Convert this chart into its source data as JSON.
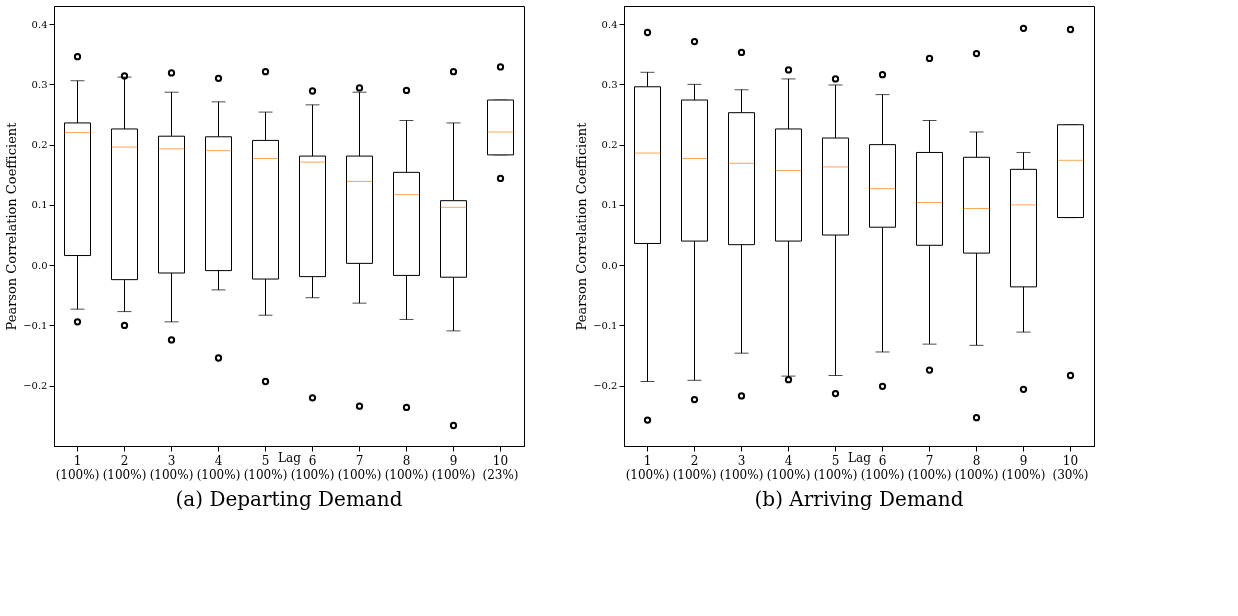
{
  "chart_data": [
    {
      "type": "box",
      "title": "(a) Departing Demand",
      "xlabel": "Lag",
      "ylabel": "Pearson Correlation Coefficient",
      "ylim": [
        -0.3,
        0.43
      ],
      "yticks": [
        {
          "value": -0.2,
          "label": "−0.2"
        },
        {
          "value": -0.1,
          "label": "−0.1"
        },
        {
          "value": 0,
          "label": "0.0"
        },
        0.1,
        0.2,
        0.3,
        0.4
      ],
      "grid": false,
      "categories": [
        "1\n(100%)",
        "2\n(100%)",
        "3\n(100%)",
        "4\n(100%)",
        "5\n(100%)",
        "6\n(100%)",
        "7\n(100%)",
        "8\n(100%)",
        "9\n(100%)",
        "10\n(23%)"
      ],
      "boxes": [
        {
          "low": -0.073,
          "q1": 0.016,
          "median": 0.22,
          "q3": 0.236,
          "high": 0.306,
          "outliers": [
            0.346,
            -0.094
          ]
        },
        {
          "low": -0.077,
          "q1": -0.024,
          "median": 0.196,
          "q3": 0.226,
          "high": 0.312,
          "outliers": [
            0.314,
            -0.1
          ]
        },
        {
          "low": -0.094,
          "q1": -0.013,
          "median": 0.193,
          "q3": 0.214,
          "high": 0.287,
          "outliers": [
            0.319,
            -0.124
          ]
        },
        {
          "low": -0.041,
          "q1": -0.009,
          "median": 0.19,
          "q3": 0.213,
          "high": 0.271,
          "outliers": [
            0.31,
            -0.154
          ]
        },
        {
          "low": -0.083,
          "q1": -0.023,
          "median": 0.177,
          "q3": 0.207,
          "high": 0.254,
          "outliers": [
            0.321,
            -0.193
          ]
        },
        {
          "low": -0.054,
          "q1": -0.019,
          "median": 0.171,
          "q3": 0.181,
          "high": 0.266,
          "outliers": [
            0.289,
            -0.22
          ]
        },
        {
          "low": -0.063,
          "q1": 0.003,
          "median": 0.139,
          "q3": 0.181,
          "high": 0.287,
          "outliers": [
            0.294,
            -0.234
          ]
        },
        {
          "low": -0.09,
          "q1": -0.017,
          "median": 0.117,
          "q3": 0.154,
          "high": 0.24,
          "outliers": [
            0.29,
            -0.236
          ]
        },
        {
          "low": -0.109,
          "q1": -0.02,
          "median": 0.096,
          "q3": 0.107,
          "high": 0.236,
          "outliers": [
            0.321,
            -0.266
          ]
        },
        {
          "low": 0.183,
          "q1": 0.183,
          "median": 0.221,
          "q3": 0.274,
          "high": 0.274,
          "outliers": [
            0.329,
            0.144
          ]
        }
      ]
    },
    {
      "type": "box",
      "title": "(b) Arriving Demand",
      "xlabel": "Lag",
      "ylabel": "Pearson Correlation Coefficient",
      "ylim": [
        -0.3,
        0.43
      ],
      "yticks": [
        {
          "value": -0.2,
          "label": "−0.2"
        },
        {
          "value": -0.1,
          "label": "−0.1"
        },
        {
          "value": 0,
          "label": "0.0"
        },
        0.1,
        0.2,
        0.3,
        0.4
      ],
      "grid": false,
      "categories": [
        "1\n(100%)",
        "2\n(100%)",
        "3\n(100%)",
        "4\n(100%)",
        "5\n(100%)",
        "6\n(100%)",
        "7\n(100%)",
        "8\n(100%)",
        "9\n(100%)",
        "10\n(30%)"
      ],
      "boxes": [
        {
          "low": -0.193,
          "q1": 0.036,
          "median": 0.186,
          "q3": 0.296,
          "high": 0.32,
          "outliers": [
            0.386,
            -0.257
          ]
        },
        {
          "low": -0.191,
          "q1": 0.04,
          "median": 0.177,
          "q3": 0.274,
          "high": 0.3,
          "outliers": [
            0.371,
            -0.223
          ]
        },
        {
          "low": -0.146,
          "q1": 0.034,
          "median": 0.169,
          "q3": 0.253,
          "high": 0.291,
          "outliers": [
            0.353,
            -0.217
          ]
        },
        {
          "low": -0.184,
          "q1": 0.04,
          "median": 0.157,
          "q3": 0.226,
          "high": 0.309,
          "outliers": [
            0.324,
            -0.19
          ]
        },
        {
          "low": -0.183,
          "q1": 0.05,
          "median": 0.163,
          "q3": 0.211,
          "high": 0.299,
          "outliers": [
            0.309,
            -0.213
          ]
        },
        {
          "low": -0.144,
          "q1": 0.063,
          "median": 0.127,
          "q3": 0.2,
          "high": 0.283,
          "outliers": [
            0.316,
            -0.201
          ]
        },
        {
          "low": -0.131,
          "q1": 0.033,
          "median": 0.104,
          "q3": 0.187,
          "high": 0.24,
          "outliers": [
            0.343,
            -0.174
          ]
        },
        {
          "low": -0.133,
          "q1": 0.02,
          "median": 0.094,
          "q3": 0.179,
          "high": 0.221,
          "outliers": [
            0.351,
            -0.253
          ]
        },
        {
          "low": -0.111,
          "q1": -0.036,
          "median": 0.1,
          "q3": 0.159,
          "high": 0.187,
          "outliers": [
            0.393,
            -0.206
          ]
        },
        {
          "low": 0.079,
          "q1": 0.079,
          "median": 0.174,
          "q3": 0.233,
          "high": 0.233,
          "outliers": [
            0.391,
            -0.183
          ]
        }
      ]
    }
  ]
}
